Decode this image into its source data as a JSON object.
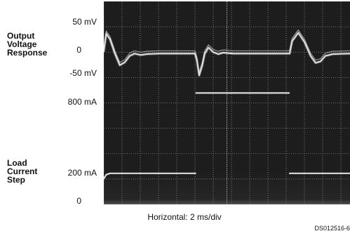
{
  "labels": {
    "voltage_trace": "Output\nVoltage\nResponse",
    "current_trace": "Load\nCurrent\nStep"
  },
  "ticks": {
    "v_top": "50 mV",
    "v_mid": "0",
    "v_bottom": "-50 mV",
    "i_top": "800 mA",
    "i_mid": "200 mA",
    "i_bottom": "0"
  },
  "x_caption": "Horizontal: 2 ms/div",
  "figure_id": "DS012516-6",
  "colors": {
    "screen": "#1d1d1d",
    "grid": "#8f8f8f",
    "trace": "#e6e6e6"
  },
  "chart_data": {
    "type": "line",
    "x_division": "2 ms/div",
    "xlim": [
      0,
      20
    ],
    "series": [
      {
        "unit": "mV",
        "points": [
          [
            0.0,
            0
          ],
          [
            0.2,
            38
          ],
          [
            0.5,
            26
          ],
          [
            0.9,
            -5
          ],
          [
            1.3,
            -30
          ],
          [
            1.7,
            -24
          ],
          [
            2.1,
            -10
          ],
          [
            2.5,
            -5
          ],
          [
            3.0,
            -8
          ],
          [
            3.5,
            -6
          ],
          [
            4.5,
            -5
          ],
          [
            6.0,
            -5
          ],
          [
            7.4,
            -5
          ],
          [
            7.55,
            -18
          ],
          [
            7.75,
            -52
          ],
          [
            8.0,
            -30
          ],
          [
            8.2,
            -5
          ],
          [
            8.5,
            8
          ],
          [
            8.9,
            -2
          ],
          [
            9.3,
            -6
          ],
          [
            9.7,
            -3
          ],
          [
            10.5,
            -5
          ],
          [
            13.0,
            -5
          ],
          [
            15.1,
            -5
          ],
          [
            15.3,
            22
          ],
          [
            15.8,
            40
          ],
          [
            16.3,
            20
          ],
          [
            16.8,
            -10
          ],
          [
            17.2,
            -25
          ],
          [
            17.6,
            -22
          ],
          [
            18.0,
            -10
          ],
          [
            18.6,
            -6
          ],
          [
            20.0,
            -5
          ]
        ]
      },
      {
        "unit": "mA",
        "points": [
          [
            0.0,
            160
          ],
          [
            0.2,
            190
          ],
          [
            0.5,
            200
          ],
          [
            7.45,
            200
          ],
          [
            7.5,
            800
          ],
          [
            15.05,
            800
          ],
          [
            15.1,
            200
          ],
          [
            15.4,
            200
          ],
          [
            20.0,
            200
          ]
        ]
      }
    ],
    "grid": true,
    "divisions": {
      "x": 10,
      "y": 8
    }
  }
}
